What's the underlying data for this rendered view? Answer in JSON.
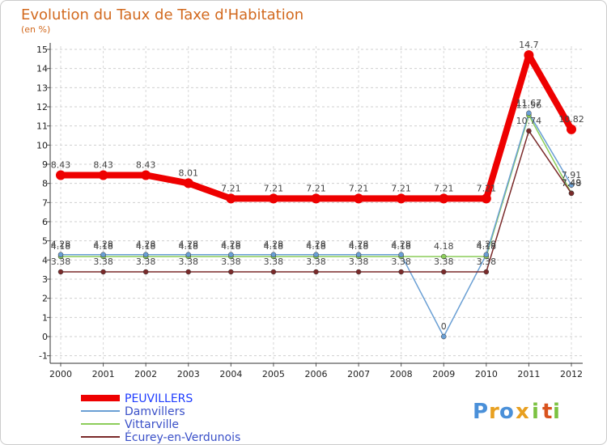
{
  "chart_data": {
    "type": "line",
    "title": "Evolution du Taux de Taxe d'Habitation",
    "subtitle": "(en %)",
    "xlabel": "",
    "ylabel": "",
    "x": [
      "2000",
      "2001",
      "2002",
      "2003",
      "2004",
      "2005",
      "2006",
      "2007",
      "2008",
      "2009",
      "2010",
      "2011",
      "2012"
    ],
    "ylim": [
      -1,
      15
    ],
    "yticks": [
      "-1",
      "0",
      "1",
      "2",
      "3",
      "4",
      "5",
      "6",
      "7",
      "8",
      "9",
      "10",
      "11",
      "12",
      "13",
      "14",
      "15"
    ],
    "grid": "dashed-horizontal",
    "legend_position": "bottom-left",
    "series": [
      {
        "name": "Vittarville",
        "color": "#8ccd5a",
        "values": [
          4.18,
          4.18,
          4.18,
          4.18,
          4.18,
          4.18,
          4.18,
          4.18,
          4.18,
          4.18,
          4.18,
          11.56,
          7.49
        ],
        "labels": [
          "4.18",
          "4.18",
          "4.18",
          "4.18",
          "4.18",
          "4.18",
          "4.18",
          "4.18",
          "4.18",
          "4.18",
          "4.18",
          "11.56",
          "7.49"
        ]
      },
      {
        "name": "Damvillers",
        "color": "#6a9fd4",
        "values": [
          4.28,
          4.28,
          4.28,
          4.28,
          4.28,
          4.28,
          4.28,
          4.28,
          4.28,
          0,
          4.28,
          11.67,
          7.91
        ],
        "labels": [
          "4.28",
          "4.28",
          "4.28",
          "4.28",
          "4.28",
          "4.28",
          "4.28",
          "4.28",
          "4.28",
          "0",
          "4.28",
          "11.67",
          "7.91"
        ]
      },
      {
        "name": "Écurey-en-Verdunois",
        "color": "#7a2a2a",
        "values": [
          3.38,
          3.38,
          3.38,
          3.38,
          3.38,
          3.38,
          3.38,
          3.38,
          3.38,
          3.38,
          3.38,
          10.74,
          7.48
        ],
        "labels": [
          "3.38",
          "3.38",
          "3.38",
          "3.38",
          "3.38",
          "3.38",
          "3.38",
          "3.38",
          "3.38",
          "3.38",
          "3.38",
          "10.74",
          "7.48"
        ]
      },
      {
        "name": "PEUVILLERS",
        "color": "#ee0000",
        "values": [
          8.43,
          8.43,
          8.43,
          8.01,
          7.21,
          7.21,
          7.21,
          7.21,
          7.21,
          7.21,
          7.21,
          14.7,
          10.82
        ],
        "labels": [
          "8.43",
          "8.43",
          "8.43",
          "8.01",
          "7.21",
          "7.21",
          "7.21",
          "7.21",
          "7.21",
          "7.21",
          "7.21",
          "14.7",
          "10.82"
        ]
      }
    ],
    "legend": [
      "PEUVILLERS",
      "Damvillers",
      "Vittarville",
      "Écurey-en-Verdunois"
    ]
  },
  "logo": {
    "letters": [
      "P",
      "r",
      "o",
      "x",
      "i",
      "t",
      "i"
    ],
    "colors": [
      "#4a90d9",
      "#e8a020",
      "#4a90d9",
      "#e8a020",
      "#7cc242",
      "#d9531e",
      "#7cc242"
    ]
  }
}
